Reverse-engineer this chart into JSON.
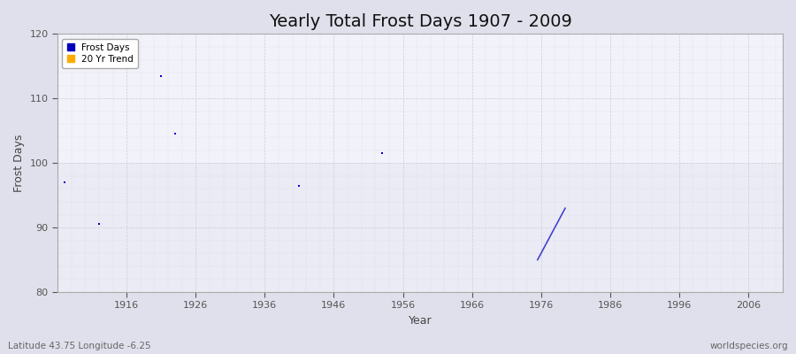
{
  "title": "Yearly Total Frost Days 1907 - 2009",
  "xlabel": "Year",
  "ylabel": "Frost Days",
  "xlim": [
    1906,
    2011
  ],
  "ylim": [
    80,
    120
  ],
  "yticks": [
    80,
    90,
    100,
    110,
    120
  ],
  "xticks": [
    1916,
    1926,
    1936,
    1946,
    1956,
    1966,
    1976,
    1986,
    1996,
    2006
  ],
  "frost_days_x": [
    1907,
    1912,
    1921,
    1923,
    1941,
    1953
  ],
  "frost_days_y": [
    97,
    90.5,
    113.5,
    104.5,
    96.5,
    101.5
  ],
  "trend_x": [
    1975.5,
    1979.5
  ],
  "trend_y": [
    85,
    93
  ],
  "point_color": "#0000cc",
  "trend_color": "#4444cc",
  "outer_bg": "#e0e0ec",
  "plot_bg": "#ebebf5",
  "plot_bg_upper": "#f2f2fa",
  "grid_color": "#ccccdd",
  "legend_frost_color": "#0000bb",
  "legend_trend_color": "#ffaa00",
  "footer_left": "Latitude 43.75 Longitude -6.25",
  "footer_right": "worldspecies.org",
  "title_fontsize": 14,
  "axis_label_fontsize": 9,
  "tick_fontsize": 8,
  "footer_fontsize": 7.5
}
